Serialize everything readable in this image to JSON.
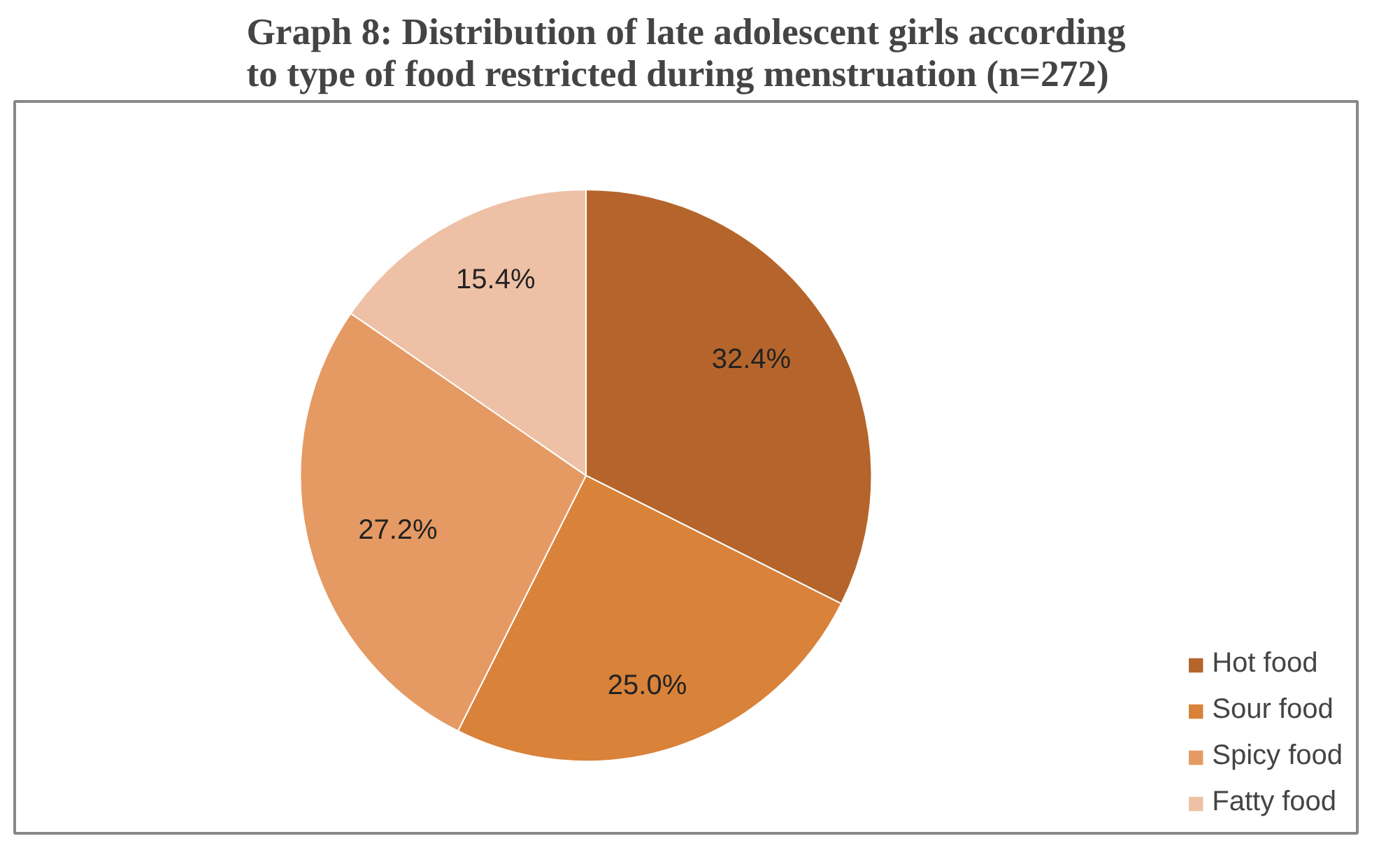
{
  "chart_data": {
    "type": "pie",
    "title": "Graph 8: Distribution of late adolescent girls according to type of food restricted during menstruation (n=272)",
    "categories": [
      "Hot food",
      "Sour food",
      "Spicy food",
      "Fatty food"
    ],
    "values": [
      32.4,
      25.0,
      27.2,
      15.4
    ],
    "value_labels": [
      "32.4%",
      "25.0%",
      "27.2%",
      "15.4%"
    ],
    "colors": [
      "#b5652b",
      "#d9823a",
      "#e59a63",
      "#eec1a6"
    ],
    "legend": "bottom right"
  }
}
